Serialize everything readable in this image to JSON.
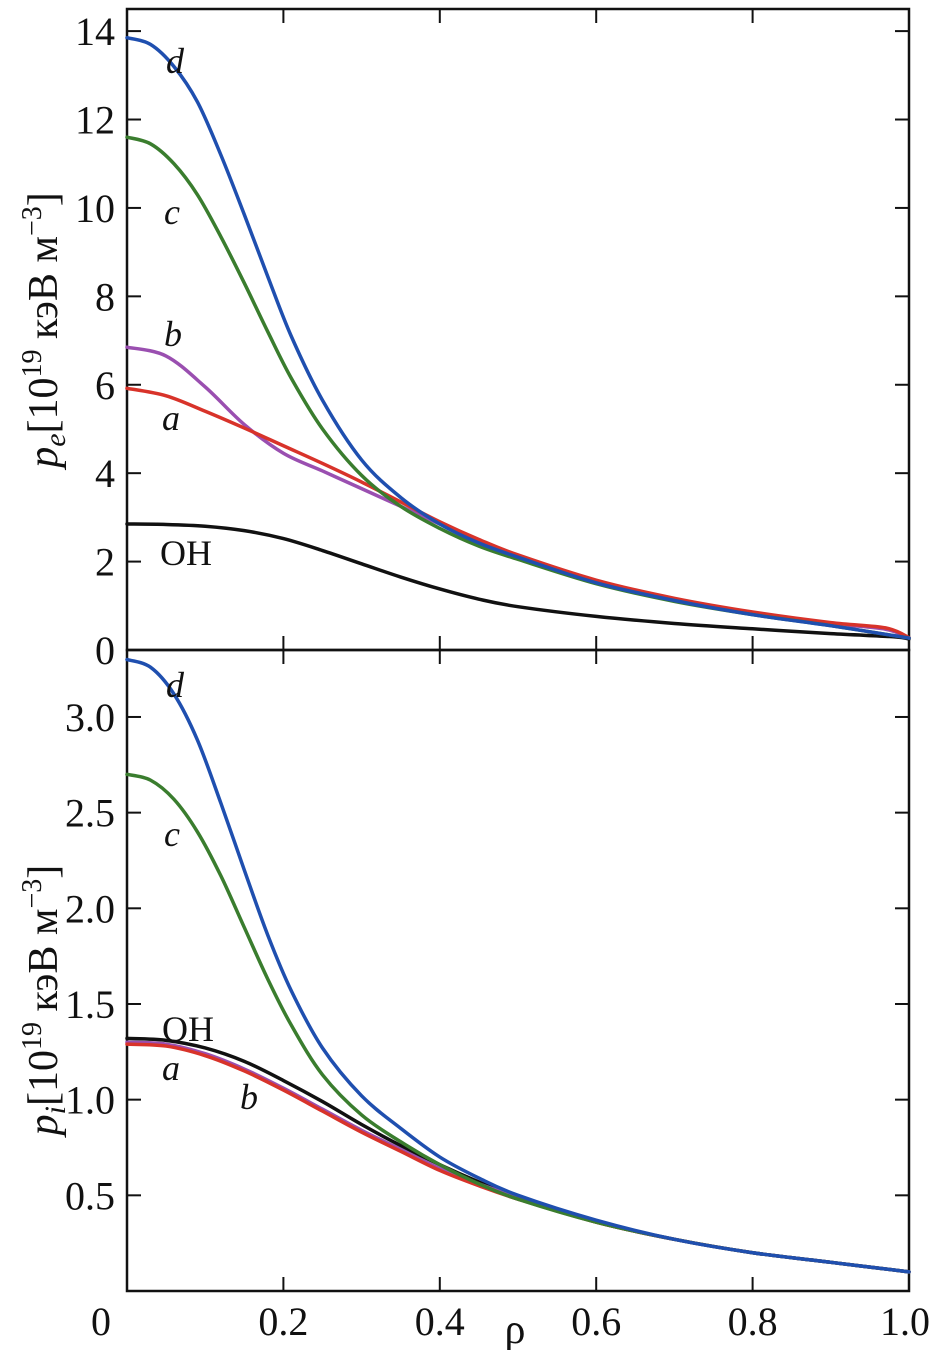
{
  "colors": {
    "OH": "#111111",
    "a": "#d8332a",
    "b": "#9a4fb0",
    "c": "#3a7d2e",
    "d": "#1f4faf"
  },
  "chart_data": [
    {
      "type": "line",
      "panel": "top",
      "ylabel_main": "p",
      "ylabel_sub": "e",
      "ylabel_rest": "[10",
      "ylabel_exp": "19",
      "ylabel_units": " кэВ м",
      "ylabel_units_exp": "−3",
      "ylabel_close": "]",
      "xlim": [
        0,
        1.0
      ],
      "ylim": [
        0,
        14.5
      ],
      "yticks": [
        "0",
        "2",
        "4",
        "6",
        "8",
        "10",
        "12",
        "14"
      ],
      "ytick_values": [
        0,
        2,
        4,
        6,
        8,
        10,
        12,
        14
      ],
      "xtick_values": [
        0.2,
        0.4,
        0.6,
        0.8
      ],
      "series": [
        {
          "name": "OH",
          "label": "OH",
          "x": [
            0,
            0.05,
            0.1,
            0.15,
            0.2,
            0.25,
            0.3,
            0.35,
            0.4,
            0.45,
            0.5,
            0.6,
            0.7,
            0.8,
            0.9,
            0.98,
            1.0
          ],
          "y": [
            2.85,
            2.84,
            2.8,
            2.7,
            2.52,
            2.25,
            1.95,
            1.65,
            1.38,
            1.15,
            0.98,
            0.76,
            0.6,
            0.48,
            0.37,
            0.3,
            0.25
          ]
        },
        {
          "name": "a",
          "label": "a",
          "x": [
            0,
            0.05,
            0.1,
            0.15,
            0.2,
            0.25,
            0.3,
            0.35,
            0.4,
            0.45,
            0.5,
            0.6,
            0.7,
            0.8,
            0.9,
            0.97,
            1.0
          ],
          "y": [
            5.92,
            5.75,
            5.4,
            5.02,
            4.62,
            4.22,
            3.8,
            3.35,
            2.9,
            2.5,
            2.15,
            1.58,
            1.17,
            0.86,
            0.62,
            0.5,
            0.28
          ]
        },
        {
          "name": "b",
          "label": "b",
          "x": [
            0,
            0.05,
            0.1,
            0.15,
            0.2,
            0.25,
            0.3,
            0.35,
            0.4,
            0.45,
            0.5,
            0.6,
            0.7,
            0.8,
            0.9,
            0.97,
            1.0
          ],
          "y": [
            6.85,
            6.65,
            5.95,
            5.1,
            4.45,
            4.05,
            3.65,
            3.25,
            2.85,
            2.45,
            2.1,
            1.55,
            1.15,
            0.84,
            0.6,
            0.47,
            0.27
          ]
        },
        {
          "name": "c",
          "label": "c",
          "x": [
            0,
            0.03,
            0.06,
            0.09,
            0.12,
            0.15,
            0.18,
            0.21,
            0.25,
            0.3,
            0.35,
            0.4,
            0.45,
            0.5,
            0.6,
            0.7,
            0.8,
            0.9,
            1.0
          ],
          "y": [
            11.6,
            11.45,
            11.0,
            10.3,
            9.35,
            8.3,
            7.2,
            6.15,
            5.0,
            3.95,
            3.25,
            2.75,
            2.35,
            2.05,
            1.5,
            1.1,
            0.8,
            0.55,
            0.27
          ]
        },
        {
          "name": "d",
          "label": "d",
          "x": [
            0,
            0.03,
            0.06,
            0.09,
            0.12,
            0.15,
            0.18,
            0.21,
            0.25,
            0.3,
            0.35,
            0.4,
            0.45,
            0.5,
            0.6,
            0.7,
            0.8,
            0.9,
            1.0
          ],
          "y": [
            13.85,
            13.7,
            13.2,
            12.4,
            11.2,
            9.85,
            8.45,
            7.1,
            5.65,
            4.3,
            3.45,
            2.85,
            2.42,
            2.1,
            1.52,
            1.12,
            0.8,
            0.55,
            0.27
          ]
        }
      ]
    },
    {
      "type": "line",
      "panel": "bottom",
      "ylabel_main": "p",
      "ylabel_sub": "i",
      "ylabel_rest": "[10",
      "ylabel_exp": "19",
      "ylabel_units": " кэВ м",
      "ylabel_units_exp": "−3",
      "ylabel_close": "]",
      "xlabel": "ρ",
      "xlim": [
        0,
        1.0
      ],
      "ylim": [
        0,
        3.35
      ],
      "yticks": [
        "0.5",
        "1.0",
        "1.5",
        "2.0",
        "2.5",
        "3.0"
      ],
      "ytick_values": [
        0.5,
        1.0,
        1.5,
        2.0,
        2.5,
        3.0
      ],
      "xticks": [
        "0",
        "0.2",
        "0.4",
        "0.6",
        "0.8",
        "1.0"
      ],
      "xtick_values": [
        0,
        0.2,
        0.4,
        0.6,
        0.8,
        1.0
      ],
      "series": [
        {
          "name": "OH",
          "label": "OH",
          "x": [
            0,
            0.05,
            0.1,
            0.15,
            0.2,
            0.25,
            0.3,
            0.35,
            0.4,
            0.45,
            0.5,
            0.6,
            0.7,
            0.8,
            0.9,
            1.0
          ],
          "y": [
            1.32,
            1.31,
            1.27,
            1.2,
            1.1,
            0.99,
            0.87,
            0.76,
            0.66,
            0.57,
            0.49,
            0.36,
            0.27,
            0.2,
            0.15,
            0.1
          ]
        },
        {
          "name": "a",
          "label": "a",
          "x": [
            0,
            0.05,
            0.1,
            0.15,
            0.2,
            0.25,
            0.3,
            0.35,
            0.4,
            0.45,
            0.5,
            0.6,
            0.7,
            0.8,
            0.9,
            1.0
          ],
          "y": [
            1.29,
            1.28,
            1.23,
            1.15,
            1.05,
            0.94,
            0.83,
            0.73,
            0.63,
            0.55,
            0.48,
            0.36,
            0.27,
            0.2,
            0.15,
            0.1
          ]
        },
        {
          "name": "b",
          "label": "b",
          "x": [
            0,
            0.05,
            0.1,
            0.15,
            0.2,
            0.25,
            0.3,
            0.35,
            0.4,
            0.45,
            0.5,
            0.6,
            0.7,
            0.8,
            0.9,
            1.0
          ],
          "y": [
            1.3,
            1.29,
            1.24,
            1.16,
            1.06,
            0.95,
            0.84,
            0.74,
            0.64,
            0.56,
            0.49,
            0.36,
            0.27,
            0.2,
            0.15,
            0.1
          ]
        },
        {
          "name": "c",
          "label": "c",
          "x": [
            0,
            0.03,
            0.06,
            0.09,
            0.12,
            0.15,
            0.18,
            0.21,
            0.25,
            0.3,
            0.35,
            0.4,
            0.45,
            0.5,
            0.6,
            0.7,
            0.8,
            0.9,
            1.0
          ],
          "y": [
            2.7,
            2.67,
            2.57,
            2.4,
            2.17,
            1.9,
            1.63,
            1.39,
            1.13,
            0.92,
            0.78,
            0.66,
            0.56,
            0.48,
            0.36,
            0.27,
            0.2,
            0.15,
            0.1
          ]
        },
        {
          "name": "d",
          "label": "d",
          "x": [
            0,
            0.03,
            0.06,
            0.09,
            0.12,
            0.15,
            0.18,
            0.21,
            0.25,
            0.3,
            0.35,
            0.4,
            0.45,
            0.5,
            0.6,
            0.7,
            0.8,
            0.9,
            1.0
          ],
          "y": [
            3.3,
            3.26,
            3.12,
            2.88,
            2.55,
            2.2,
            1.86,
            1.57,
            1.27,
            1.02,
            0.85,
            0.7,
            0.59,
            0.5,
            0.37,
            0.27,
            0.2,
            0.15,
            0.1
          ]
        }
      ]
    }
  ]
}
